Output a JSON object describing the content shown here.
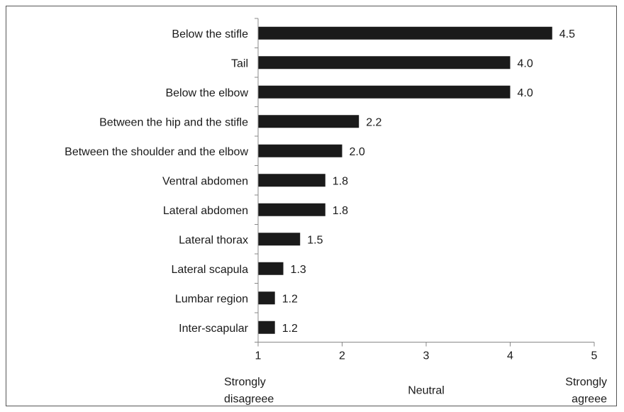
{
  "chart_data": {
    "type": "bar",
    "orientation": "horizontal",
    "categories": [
      "Below the stifle",
      "Tail",
      "Below the elbow",
      "Between the hip and the stifle",
      "Between the shoulder and the elbow",
      "Ventral abdomen",
      "Lateral abdomen",
      "Lateral thorax",
      "Lateral scapula",
      "Lumbar region",
      "Inter-scapular"
    ],
    "values": [
      4.5,
      4.0,
      4.0,
      2.2,
      2.0,
      1.8,
      1.8,
      1.5,
      1.3,
      1.2,
      1.2
    ],
    "value_labels": [
      "4.5",
      "4.0",
      "4.0",
      "2.2",
      "2.0",
      "1.8",
      "1.8",
      "1.5",
      "1.3",
      "1.2",
      "1.2"
    ],
    "xlim": [
      1,
      5
    ],
    "x_ticks": [
      "1",
      "2",
      "3",
      "4",
      "5"
    ],
    "scale_anchors": {
      "left": [
        "Strongly",
        "disagreee"
      ],
      "middle": [
        "Neutral"
      ],
      "right": [
        "Strongly",
        "agreee"
      ]
    },
    "grid": false,
    "bar_color": "#1a1a1a"
  }
}
